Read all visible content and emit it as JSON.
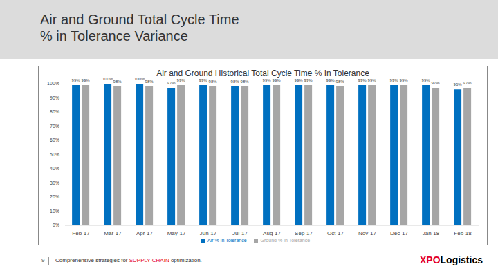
{
  "header": {
    "title_lines": [
      "Air and Ground Total Cycle Time",
      "% in Tolerance Variance"
    ]
  },
  "footer": {
    "page": "9",
    "text_parts": [
      "Comprehensive strategies for ",
      "SUPPLY CHAIN",
      " optimization."
    ],
    "logo_parts": [
      "XPO",
      "Logistics"
    ]
  },
  "chart_data": {
    "type": "bar",
    "title": "Air and Ground Historical Total Cycle Time % In Tolerance",
    "categories": [
      "Feb-17",
      "Mar-17",
      "Apr-17",
      "May-17",
      "Jun-17",
      "Jul-17",
      "Aug-17",
      "Sep-17",
      "Oct-17",
      "Nov-17",
      "Dec-17",
      "Jan-18",
      "Feb-18"
    ],
    "series": [
      {
        "name": "Air % In Tolerance",
        "color": "#0070c0",
        "values": [
          99,
          100,
          100,
          97,
          99,
          98,
          99,
          99,
          99,
          99,
          99,
          99,
          96
        ],
        "value_labels": [
          "99%",
          "100%",
          "100%",
          "97%",
          "99%",
          "98%",
          "99%",
          "99%",
          "99%",
          "99%",
          "99%",
          "99%",
          "96%"
        ]
      },
      {
        "name": "Ground % In Tolerance",
        "color": "#a6a6a6",
        "values": [
          99,
          98,
          98,
          99,
          98,
          98,
          99,
          99,
          98,
          99,
          99,
          97,
          97
        ],
        "value_labels": [
          "99%",
          "98%",
          "98%",
          "99%",
          "98%",
          "98%",
          "99%",
          "99%",
          "98%",
          "99%",
          "99%",
          "97%",
          "97%"
        ]
      }
    ],
    "ylim": [
      0,
      100
    ],
    "yticks": [
      {
        "value": 0,
        "label": "0%"
      },
      {
        "value": 10,
        "label": "10%"
      },
      {
        "value": 20,
        "label": "20%"
      },
      {
        "value": 30,
        "label": "30%"
      },
      {
        "value": 40,
        "label": "40%"
      },
      {
        "value": 50,
        "label": "50%"
      },
      {
        "value": 60,
        "label": "60%"
      },
      {
        "value": 70,
        "label": "70%"
      },
      {
        "value": 80,
        "label": "80%"
      },
      {
        "value": 90,
        "label": "90%"
      },
      {
        "value": 100,
        "label": "100%"
      }
    ],
    "grid": false,
    "legend": "bottom",
    "data_labels": true
  }
}
